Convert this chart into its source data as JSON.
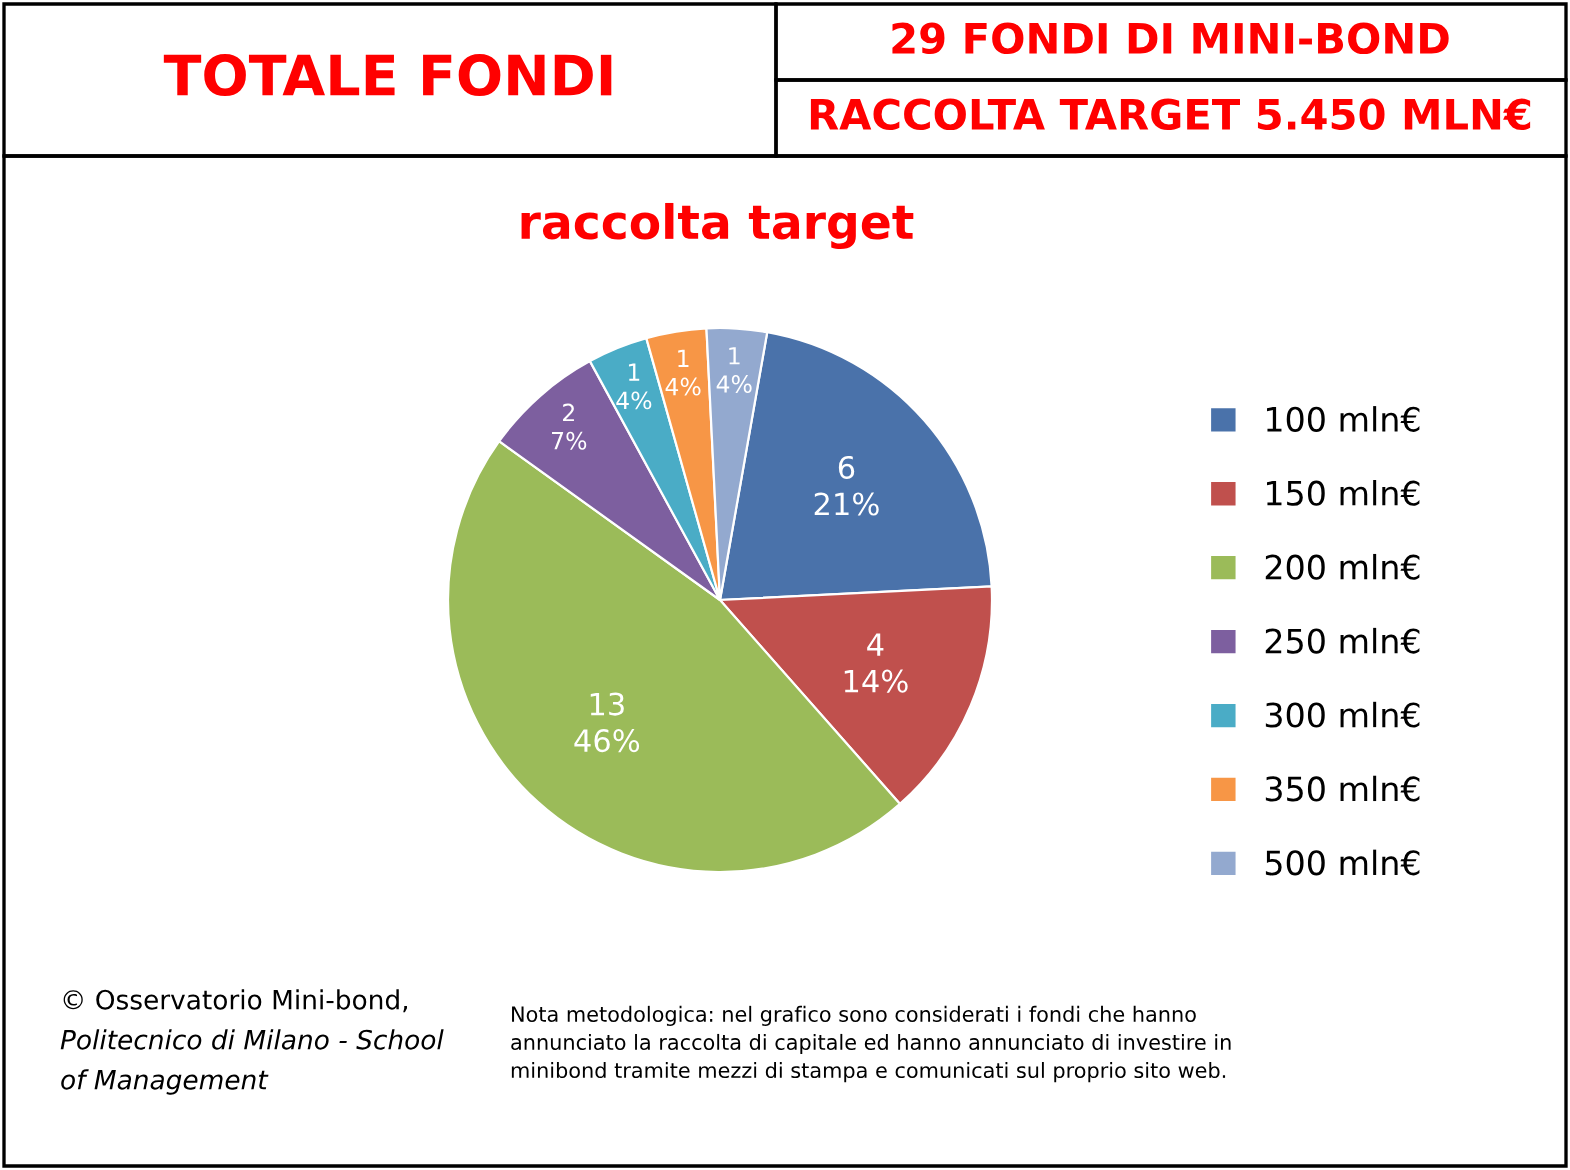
{
  "chart_data": {
    "type": "pie",
    "title": "raccolta target",
    "categories": [
      "100 mln€",
      "150 mln€",
      "200 mln€",
      "250 mln€",
      "300 mln€",
      "350 mln€",
      "500 mln€"
    ],
    "values": [
      6,
      4,
      13,
      2,
      1,
      1,
      1
    ],
    "value_labels": [
      "6\n21%",
      "4\n14%",
      "13\n46%",
      "2\n7%",
      "1\n4%",
      "1\n4%",
      "1\n4%"
    ],
    "colors": [
      "#4a72aa",
      "#c0504d",
      "#9bbb59",
      "#7d5f9f",
      "#4aacc6",
      "#f79646",
      "#93a9cf"
    ],
    "legend": "right",
    "annotations": [
      "TOTALE FONDI",
      "29 FONDI DI MINI-BOND",
      "RACCOLTA TARGET 5.450 MLN€",
      "© Osservatorio Mini-bond,\nPolitecnico di Milano - School\nof Management",
      "Nota metodologica: nel grafico sono considerati i fondi che hanno\nannunciato la raccolta di capitale ed hanno annunciato di investire in\nminibond tramite mezzi di stampa e comunicati sul proprio sito web."
    ]
  }
}
